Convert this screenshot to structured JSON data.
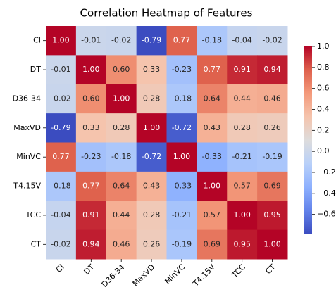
{
  "chart_data": {
    "type": "heatmap",
    "title": "Correlation Heatmap of Features",
    "x_categories": [
      "CI",
      "DT",
      "D36-34",
      "MaxVD",
      "MinVC",
      "T4.15V",
      "TCC",
      "CT"
    ],
    "y_categories": [
      "CI",
      "DT",
      "D36-34",
      "MaxVD",
      "MinVC",
      "T4.15V",
      "TCC",
      "CT"
    ],
    "values": [
      [
        1.0,
        -0.01,
        -0.02,
        -0.79,
        0.77,
        -0.18,
        -0.04,
        -0.02
      ],
      [
        -0.01,
        1.0,
        0.6,
        0.33,
        -0.23,
        0.77,
        0.91,
        0.94
      ],
      [
        -0.02,
        0.6,
        1.0,
        0.28,
        -0.18,
        0.64,
        0.44,
        0.46
      ],
      [
        -0.79,
        0.33,
        0.28,
        1.0,
        -0.72,
        0.43,
        0.28,
        0.26
      ],
      [
        0.77,
        -0.23,
        -0.18,
        -0.72,
        1.0,
        -0.33,
        -0.21,
        -0.19
      ],
      [
        -0.18,
        0.77,
        0.64,
        0.43,
        -0.33,
        1.0,
        0.57,
        0.69
      ],
      [
        -0.04,
        0.91,
        0.44,
        0.28,
        -0.21,
        0.57,
        1.0,
        0.95
      ],
      [
        -0.02,
        0.94,
        0.46,
        0.26,
        -0.19,
        0.69,
        0.95,
        1.0
      ]
    ],
    "value_labels": [
      [
        "1.00",
        "-0.01",
        "-0.02",
        "-0.79",
        "0.77",
        "-0.18",
        "-0.04",
        "-0.02"
      ],
      [
        "-0.01",
        "1.00",
        "0.60",
        "0.33",
        "-0.23",
        "0.77",
        "0.91",
        "0.94"
      ],
      [
        "-0.02",
        "0.60",
        "1.00",
        "0.28",
        "-0.18",
        "0.64",
        "0.44",
        "0.46"
      ],
      [
        "-0.79",
        "0.33",
        "0.28",
        "1.00",
        "-0.72",
        "0.43",
        "0.28",
        "0.26"
      ],
      [
        "0.77",
        "-0.23",
        "-0.18",
        "-0.72",
        "1.00",
        "-0.33",
        "-0.21",
        "-0.19"
      ],
      [
        "-0.18",
        "0.77",
        "0.64",
        "0.43",
        "-0.33",
        "1.00",
        "0.57",
        "0.69"
      ],
      [
        "-0.04",
        "0.91",
        "0.44",
        "0.28",
        "-0.21",
        "0.57",
        "1.00",
        "0.95"
      ],
      [
        "-0.02",
        "0.94",
        "0.46",
        "0.26",
        "-0.19",
        "0.69",
        "0.95",
        "1.00"
      ]
    ],
    "colormap": "coolwarm",
    "clim": [
      -0.79,
      1.0
    ],
    "cticks": [
      {
        "value": 1.0,
        "label": "1.0"
      },
      {
        "value": 0.8,
        "label": "0.8"
      },
      {
        "value": 0.6,
        "label": "0.6"
      },
      {
        "value": 0.4,
        "label": "0.4"
      },
      {
        "value": 0.2,
        "label": "0.2"
      },
      {
        "value": 0.0,
        "label": "0.0"
      },
      {
        "value": -0.2,
        "label": "−0.2"
      },
      {
        "value": -0.4,
        "label": "−0.4"
      },
      {
        "value": -0.6,
        "label": "−0.6"
      }
    ]
  }
}
